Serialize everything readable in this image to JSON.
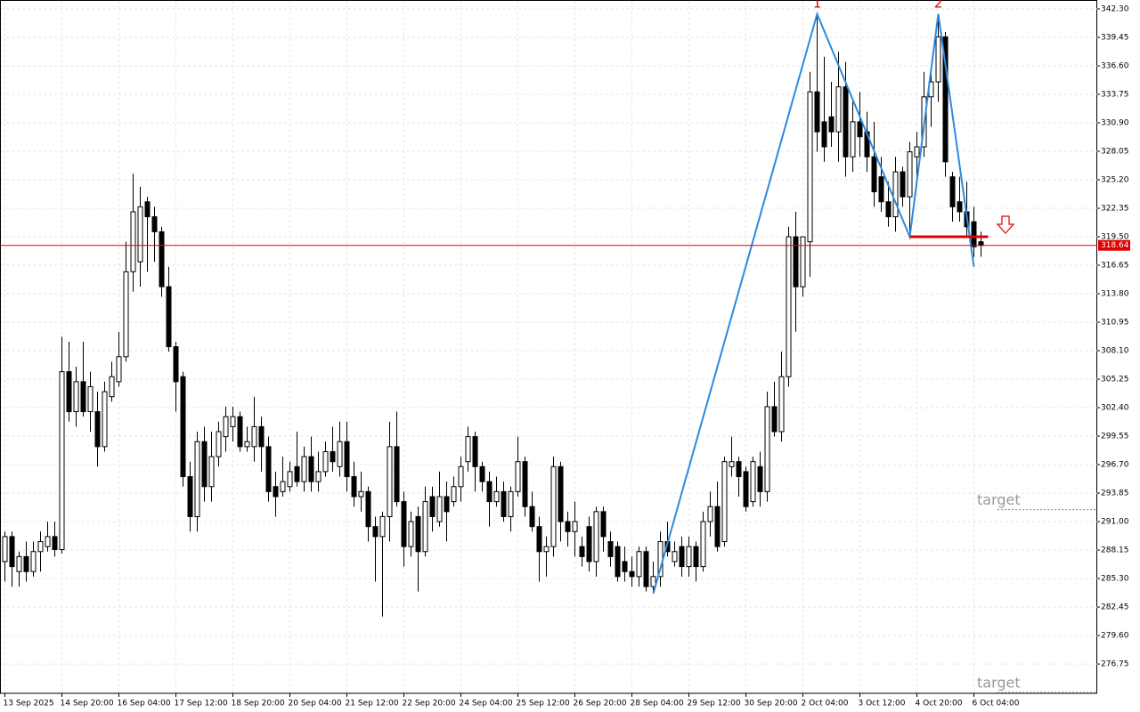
{
  "chart_data": {
    "type": "candlestick",
    "categories": [
      "13 Sep 2025",
      null,
      null,
      null,
      null,
      null,
      null,
      null,
      "14 Sep 20:00",
      null,
      null,
      null,
      null,
      null,
      null,
      null,
      "16 Sep 04:00",
      null,
      null,
      null,
      null,
      null,
      null,
      null,
      "17 Sep 12:00",
      null,
      null,
      null,
      null,
      null,
      null,
      null,
      "18 Sep 20:00",
      null,
      null,
      null,
      null,
      null,
      null,
      null,
      "20 Sep 04:00",
      null,
      null,
      null,
      null,
      null,
      null,
      null,
      "21 Sep 12:00",
      null,
      null,
      null,
      null,
      null,
      null,
      null,
      "22 Sep 20:00",
      null,
      null,
      null,
      null,
      null,
      null,
      null,
      "24 Sep 04:00",
      null,
      null,
      null,
      null,
      null,
      null,
      null,
      "25 Sep 12:00",
      null,
      null,
      null,
      null,
      null,
      null,
      null,
      "26 Sep 20:00",
      null,
      null,
      null,
      null,
      null,
      null,
      null,
      "28 Sep 04:00",
      null,
      null,
      null,
      null,
      null,
      null,
      null,
      "29 Sep 12:00",
      null,
      null,
      null,
      null,
      null,
      null,
      null,
      "30 Sep 20:00",
      null,
      null,
      null,
      null,
      null,
      null,
      null,
      "2 Oct 04:00",
      null,
      null,
      null,
      null,
      null,
      null,
      null,
      "3 Oct 12:00",
      null,
      null,
      null,
      null,
      null,
      null,
      null,
      "4 Oct 20:00",
      null,
      null,
      null,
      null,
      null,
      null,
      null,
      "6 Oct 04:00",
      null
    ],
    "open": [
      287,
      289.5,
      286,
      287.5,
      286,
      288,
      288.5,
      289.5,
      288.2,
      306,
      302,
      305,
      302,
      302,
      298.5,
      303.5,
      305,
      307.5,
      316,
      317,
      323,
      321.5,
      320,
      314.5,
      308.5,
      305.5,
      295.5,
      291.5,
      299,
      294.5,
      297.5,
      299.5,
      300.5,
      301.5,
      298.5,
      298.5,
      300.5,
      298.5,
      294.5,
      294,
      294.5,
      296.5,
      295,
      297.5,
      295,
      296,
      298,
      296.5,
      299,
      295.5,
      293.5,
      294,
      290.5,
      289.5,
      291.5,
      298.5,
      293,
      288.5,
      291.5,
      288,
      293.5,
      291,
      293.5,
      293,
      294.5,
      297,
      299.5,
      296.5,
      295,
      293,
      294,
      291.5,
      294,
      297,
      292.5,
      290.5,
      288,
      288.5,
      296.5,
      291,
      290,
      288.5,
      290.5,
      287,
      292,
      289,
      288.5,
      287,
      286,
      285.5,
      288,
      284.5,
      285.5,
      289,
      287,
      288.5,
      286.5,
      288.5,
      286.5,
      291,
      292.5,
      289,
      296.5,
      297,
      296,
      293,
      296.5,
      294,
      302.5,
      300,
      305.5,
      319.5,
      314.5,
      319,
      334,
      331,
      331.5,
      330,
      334.5,
      327.5,
      331,
      330,
      327.5,
      325.5,
      323,
      321.5,
      326,
      323.5,
      327.5,
      328.5,
      333.5,
      335,
      339.5,
      325.5,
      323,
      322,
      321,
      319
    ],
    "high": [
      290,
      290,
      288,
      289,
      289,
      290,
      291,
      291,
      309.5,
      309,
      306.5,
      309,
      306,
      304,
      305,
      307,
      310,
      319,
      325.8,
      324.5,
      323.5,
      322.5,
      320.5,
      316.5,
      309,
      306,
      297,
      300,
      300.5,
      300,
      301,
      302.5,
      302.5,
      302,
      300.5,
      303.5,
      301.5,
      299.5,
      296,
      297.5,
      297,
      300,
      298.5,
      299.5,
      298,
      299,
      300.5,
      301,
      301,
      297,
      296,
      294.5,
      291.5,
      292,
      301,
      302,
      294,
      292,
      292.5,
      294.5,
      294.5,
      296,
      295,
      295.5,
      297.5,
      300.5,
      300,
      297,
      296,
      295.5,
      295,
      294.5,
      299.5,
      297.5,
      294,
      291.5,
      289.5,
      297.5,
      297,
      292,
      293,
      289.5,
      291.5,
      292.5,
      292.5,
      290,
      289,
      288.5,
      287.5,
      288.5,
      288.5,
      287,
      290,
      291,
      289,
      289.5,
      289.5,
      289,
      292,
      294,
      295,
      297.5,
      299.5,
      297.5,
      296.5,
      297.5,
      298,
      304,
      305,
      308,
      320.5,
      322,
      319.5,
      336,
      341.8,
      337.5,
      335,
      338,
      337,
      333,
      334,
      332,
      331,
      327.5,
      325,
      327.5,
      326.5,
      329,
      330,
      336,
      336,
      341.8,
      340,
      326,
      325.5,
      325,
      322.5,
      320
    ],
    "low": [
      285,
      284.5,
      284.5,
      285,
      285.5,
      286,
      288,
      287.5,
      287.8,
      301,
      300.5,
      301.5,
      300,
      296.5,
      298,
      303,
      304.5,
      307,
      314,
      314.5,
      316,
      317,
      313.5,
      308,
      302,
      294.5,
      290,
      290,
      293,
      293,
      296.5,
      298,
      299,
      298,
      298,
      297,
      296,
      293,
      291.5,
      293.5,
      294,
      294.5,
      294,
      294,
      294,
      295.5,
      296,
      295.5,
      294,
      292.5,
      292,
      289,
      285,
      281.5,
      289,
      292.5,
      286.5,
      287.5,
      284,
      287.5,
      290,
      290.5,
      289,
      292.5,
      293,
      296,
      294,
      294,
      290.5,
      292.5,
      291,
      290,
      293.5,
      291.5,
      290,
      285,
      285.5,
      287.5,
      289,
      288.5,
      287.5,
      286.5,
      286,
      285.5,
      288,
      286.5,
      285,
      285,
      284.5,
      284.5,
      284,
      283.8,
      284.5,
      287.5,
      286.5,
      285.5,
      285.5,
      285,
      286,
      289.5,
      288,
      288.5,
      295.5,
      293.5,
      292,
      292.5,
      292.5,
      293,
      299.5,
      299,
      304.5,
      310,
      313.5,
      315.5,
      328,
      327,
      328.5,
      327,
      325.5,
      326,
      327.5,
      326,
      322.5,
      322,
      320.5,
      320,
      322.5,
      320,
      325.5,
      327.5,
      330.5,
      333,
      325.5,
      321,
      321,
      319.5,
      317.5,
      317.5
    ],
    "close": [
      289.5,
      286.5,
      287.5,
      286,
      288,
      289,
      289.5,
      288.2,
      306,
      302,
      305,
      302,
      304.5,
      298.5,
      304,
      305.5,
      307.5,
      316,
      322,
      322.5,
      321.5,
      320,
      314.5,
      308.5,
      305,
      295.5,
      291.5,
      299,
      294.5,
      297.5,
      300,
      301.5,
      301.5,
      298.5,
      299,
      300.5,
      298.5,
      294,
      293.5,
      295,
      296,
      295,
      297.5,
      295,
      296,
      298,
      297,
      299,
      295.5,
      293.5,
      294,
      290.5,
      289.5,
      291.5,
      298.5,
      293,
      288.5,
      291,
      288,
      293,
      291.5,
      293.5,
      292,
      294.5,
      296.5,
      299.5,
      296.5,
      295,
      293,
      294,
      291.5,
      294,
      297,
      292.5,
      290.5,
      288,
      288.5,
      296.5,
      291,
      290,
      291,
      287.5,
      287,
      292,
      289.5,
      287.5,
      285.5,
      286,
      285.5,
      288,
      284.5,
      285.5,
      289,
      288,
      288,
      286.5,
      288.5,
      286.5,
      291,
      292.5,
      288.5,
      297,
      297,
      295.5,
      292.5,
      297,
      294,
      302.5,
      300,
      305.5,
      319.5,
      314.5,
      319.5,
      334,
      330,
      328.5,
      330,
      334.5,
      327.5,
      331,
      329.5,
      327.5,
      324,
      323,
      321.5,
      326,
      323.5,
      328,
      328.5,
      333.5,
      335,
      339.5,
      327,
      322.5,
      322,
      320.5,
      318.5,
      318.64
    ],
    "bull_color": "#ffffff",
    "bear_color": "#000000",
    "ylim": [
      273.82,
      343.19
    ],
    "yticks": [
      {
        "value": 342.3,
        "label": "342.30"
      },
      339.45,
      {
        "value": 336.6,
        "label": "336.60"
      },
      333.75,
      {
        "value": 330.9,
        "label": "330.90"
      },
      328.05,
      {
        "value": 325.2,
        "label": "325.20"
      },
      322.35,
      {
        "value": 319.5,
        "label": "319.50"
      },
      316.65,
      {
        "value": 313.8,
        "label": "313.80"
      },
      310.95,
      {
        "value": 308.1,
        "label": "308.10"
      },
      305.25,
      {
        "value": 302.4,
        "label": "302.40"
      },
      299.55,
      {
        "value": 296.7,
        "label": "296.70"
      },
      293.85,
      {
        "value": 291,
        "label": "291.00"
      },
      288.15,
      {
        "value": 285.3,
        "label": "285.30"
      },
      282.45,
      {
        "value": 279.6,
        "label": "279.60"
      },
      276.75
    ],
    "grid": true,
    "last_price": 318.64,
    "last_price_color": "#e00000",
    "zigzag": {
      "color": "#2b8ae0",
      "x": [
        91,
        114,
        127,
        131,
        136
      ],
      "values": [
        283.8,
        341.8,
        319.5,
        341.8,
        316.5
      ],
      "labels": [
        "1",
        "2"
      ]
    },
    "neckline": {
      "color": "#e00000",
      "value": 319.5,
      "x": [
        127,
        138
      ]
    },
    "targets": [
      {
        "label": "target",
        "value": 292.2
      },
      {
        "label": "target",
        "value": 273.9
      }
    ]
  }
}
